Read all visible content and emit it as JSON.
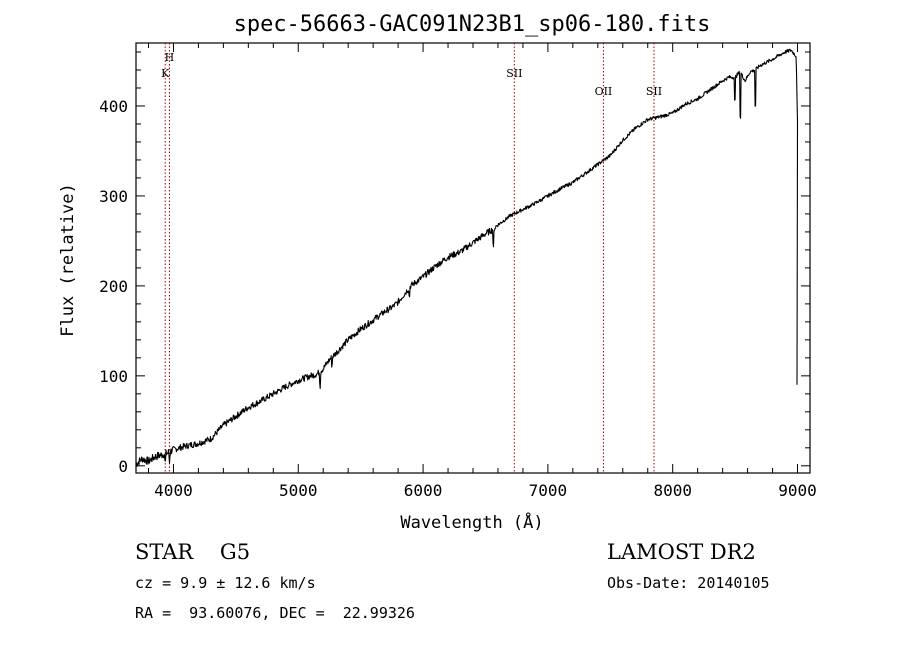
{
  "chart_data": {
    "type": "line",
    "title": "spec-56663-GAC091N23B1_sp06-180.fits",
    "xlabel": "Wavelength (Å)",
    "ylabel": "Flux (relative)",
    "xlim": [
      3700,
      9100
    ],
    "ylim": [
      -8,
      470
    ],
    "x_ticks": [
      4000,
      5000,
      6000,
      7000,
      8000,
      9000
    ],
    "y_ticks": [
      0,
      100,
      200,
      300,
      400
    ],
    "grid": false,
    "line_color": "#000000",
    "marker_color": "#aa0000",
    "line_markers": [
      {
        "label": "H",
        "x": 3968
      },
      {
        "label": "K",
        "x": 3934
      },
      {
        "label": "SII",
        "x": 6731
      },
      {
        "label": "OII",
        "x": 7445
      },
      {
        "label": "SII",
        "x": 7850
      }
    ],
    "series": [
      {
        "x": [
          3700,
          3750,
          3800,
          3850,
          3900,
          3950,
          4000,
          4100,
          4200,
          4300,
          4400,
          4500,
          4600,
          4700,
          4800,
          4900,
          5000,
          5100,
          5150,
          5200,
          5250,
          5300,
          5400,
          5500,
          5600,
          5700,
          5750,
          5800,
          5900,
          6000,
          6100,
          6200,
          6300,
          6400,
          6500,
          6550,
          6600,
          6700,
          6800,
          6900,
          7000,
          7100,
          7200,
          7300,
          7400,
          7500,
          7600,
          7700,
          7800,
          7900,
          8000,
          8100,
          8200,
          8300,
          8400,
          8450,
          8500,
          8540,
          8580,
          8620,
          8660,
          8700,
          8800,
          8900,
          8950,
          8990,
          9000
        ],
        "y": [
          2,
          8,
          5,
          10,
          12,
          14,
          18,
          22,
          25,
          30,
          45,
          55,
          65,
          72,
          80,
          88,
          95,
          100,
          102,
          108,
          118,
          125,
          140,
          152,
          162,
          172,
          176,
          182,
          200,
          210,
          222,
          232,
          238,
          248,
          258,
          262,
          268,
          278,
          285,
          292,
          300,
          308,
          315,
          325,
          335,
          345,
          362,
          375,
          385,
          388,
          392,
          402,
          408,
          418,
          428,
          432,
          432,
          438,
          428,
          438,
          440,
          445,
          452,
          460,
          462,
          455,
          380
        ]
      }
    ]
  },
  "info": {
    "object": "STAR    G5",
    "redshift": "cz = 9.9 ± 12.6 km/s",
    "coords": "RA =  93.60076, DEC =  22.99326",
    "survey": "LAMOST DR2",
    "obs_date": "Obs-Date: 20140105"
  }
}
